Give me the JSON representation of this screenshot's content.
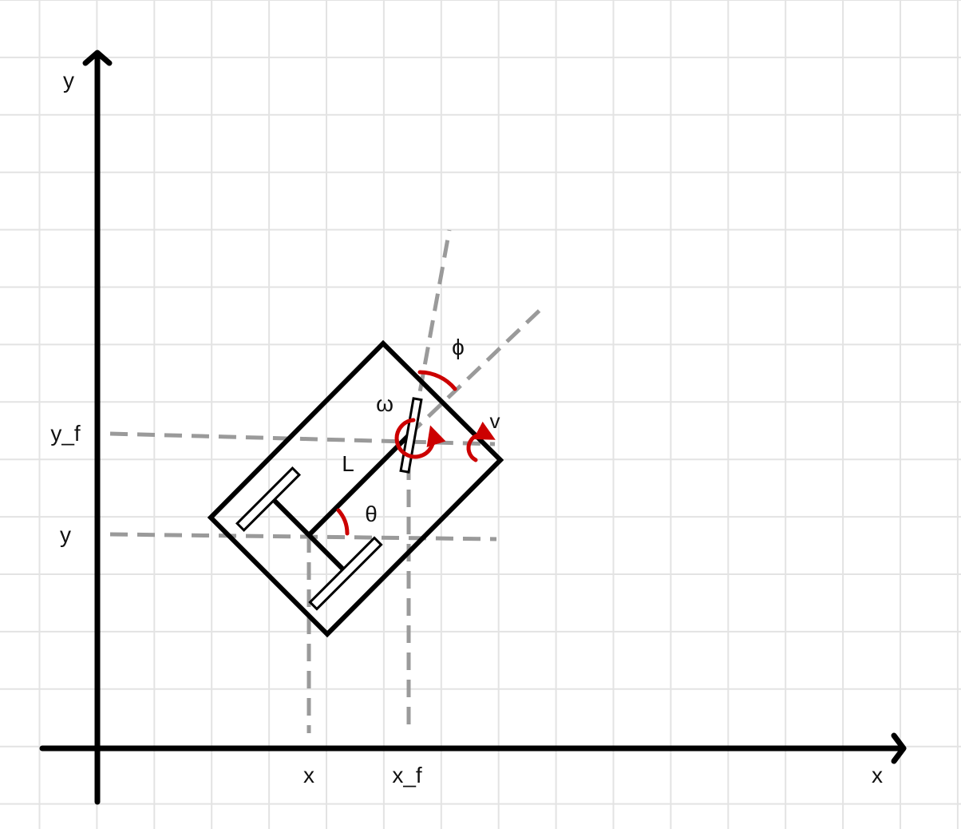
{
  "axes": {
    "x_axis_label": "x",
    "y_axis_label": "y"
  },
  "ticks": {
    "x_label": "x",
    "x_f_label": "x_f",
    "y_label": "y",
    "y_f_label": "y_f"
  },
  "symbols": {
    "length": "L",
    "heading_angle": "θ",
    "steering_angle": "ϕ",
    "angular_velocity": "ω",
    "velocity": "v"
  },
  "colors": {
    "background": "#ffffff",
    "grid": "#e3e3e3",
    "axis": "#000000",
    "body_outline": "#000000",
    "guide_dash": "#9a9a9a",
    "angle_arc": "#cc0000"
  }
}
